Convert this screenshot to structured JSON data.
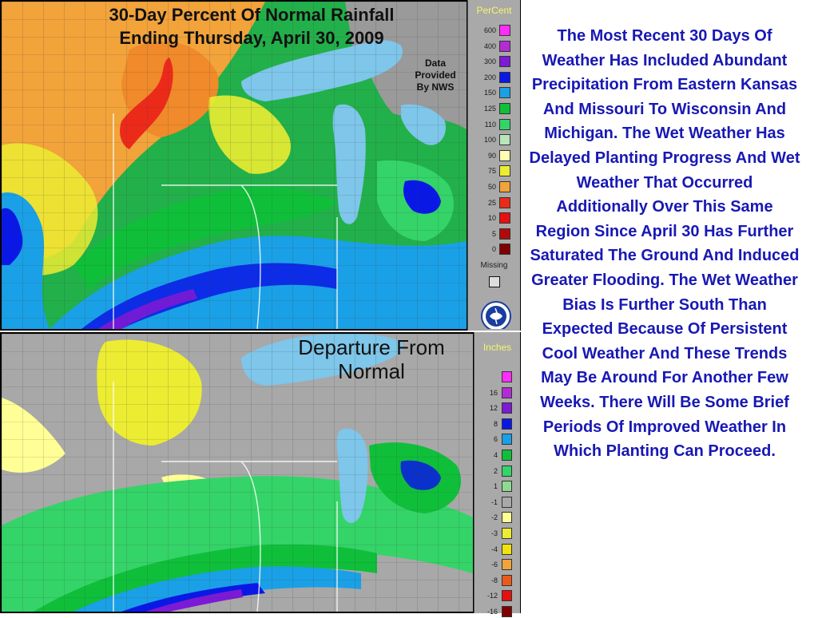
{
  "top_map": {
    "title_line1": "30-Day Percent Of Normal Rainfall",
    "title_line2": "Ending Thursday, April 30, 2009",
    "credit_line1": "Data",
    "credit_line2": "Provided",
    "credit_line3": "By NWS",
    "legend_title": "PerCent",
    "legend": [
      {
        "label": "600",
        "color": "#ff2cff"
      },
      {
        "label": "400",
        "color": "#b22cd6"
      },
      {
        "label": "300",
        "color": "#7c1ad6"
      },
      {
        "label": "200",
        "color": "#0a18e6"
      },
      {
        "label": "150",
        "color": "#1aa0e6"
      },
      {
        "label": "125",
        "color": "#0fbf3a"
      },
      {
        "label": "110",
        "color": "#34d468"
      },
      {
        "label": "100",
        "color": "#b8e6b8"
      },
      {
        "label": "90",
        "color": "#ffffb4"
      },
      {
        "label": "75",
        "color": "#ecec32"
      },
      {
        "label": "50",
        "color": "#f2a33a"
      },
      {
        "label": "25",
        "color": "#ec2a1a"
      },
      {
        "label": "10",
        "color": "#e61010"
      },
      {
        "label": "5",
        "color": "#b20a0a"
      },
      {
        "label": "0",
        "color": "#800000"
      }
    ],
    "missing_label": "Missing"
  },
  "bottom_map": {
    "title_line1": "Departure From",
    "title_line2": "Normal",
    "legend_title": "Inches",
    "legend": [
      {
        "label": "",
        "color": "#ff2cff"
      },
      {
        "label": "16",
        "color": "#b22cd6"
      },
      {
        "label": "12",
        "color": "#7c1ad6"
      },
      {
        "label": "8",
        "color": "#0a18e6"
      },
      {
        "label": "6",
        "color": "#1aa0e6"
      },
      {
        "label": "4",
        "color": "#0fbf3a"
      },
      {
        "label": "2",
        "color": "#34d468"
      },
      {
        "label": "1",
        "color": "#8fd88f"
      },
      {
        "label": "-1",
        "color": "#a8a8a8"
      },
      {
        "label": "-2",
        "color": "#ffff96"
      },
      {
        "label": "-3",
        "color": "#ecec32"
      },
      {
        "label": "-4",
        "color": "#f2e10a"
      },
      {
        "label": "-6",
        "color": "#f2a33a"
      },
      {
        "label": "-8",
        "color": "#ec5a1a"
      },
      {
        "label": "-12",
        "color": "#e61010"
      },
      {
        "label": "-16",
        "color": "#800000"
      }
    ]
  },
  "body_text": "The Most Recent 30 Days Of Weather Has Included Abundant Precipitation From Eastern Kansas And Missouri To Wisconsin And Michigan. The Wet Weather Has Delayed Planting Progress And Wet Weather That Occurred Additionally Over This Same Region Since April 30 Has Further Saturated The Ground And Induced Greater Flooding. The Wet Weather Bias Is Further South Than Expected Because Of Persistent Cool Weather And These Trends May Be Around For Another Few Weeks. There Will Be Some Brief Periods Of Improved Weather In Which Planting Can Proceed.",
  "colors": {
    "lake": "#7ec6ea",
    "text_blue": "#1818b4",
    "legend_bg": "#a9a9a9"
  }
}
